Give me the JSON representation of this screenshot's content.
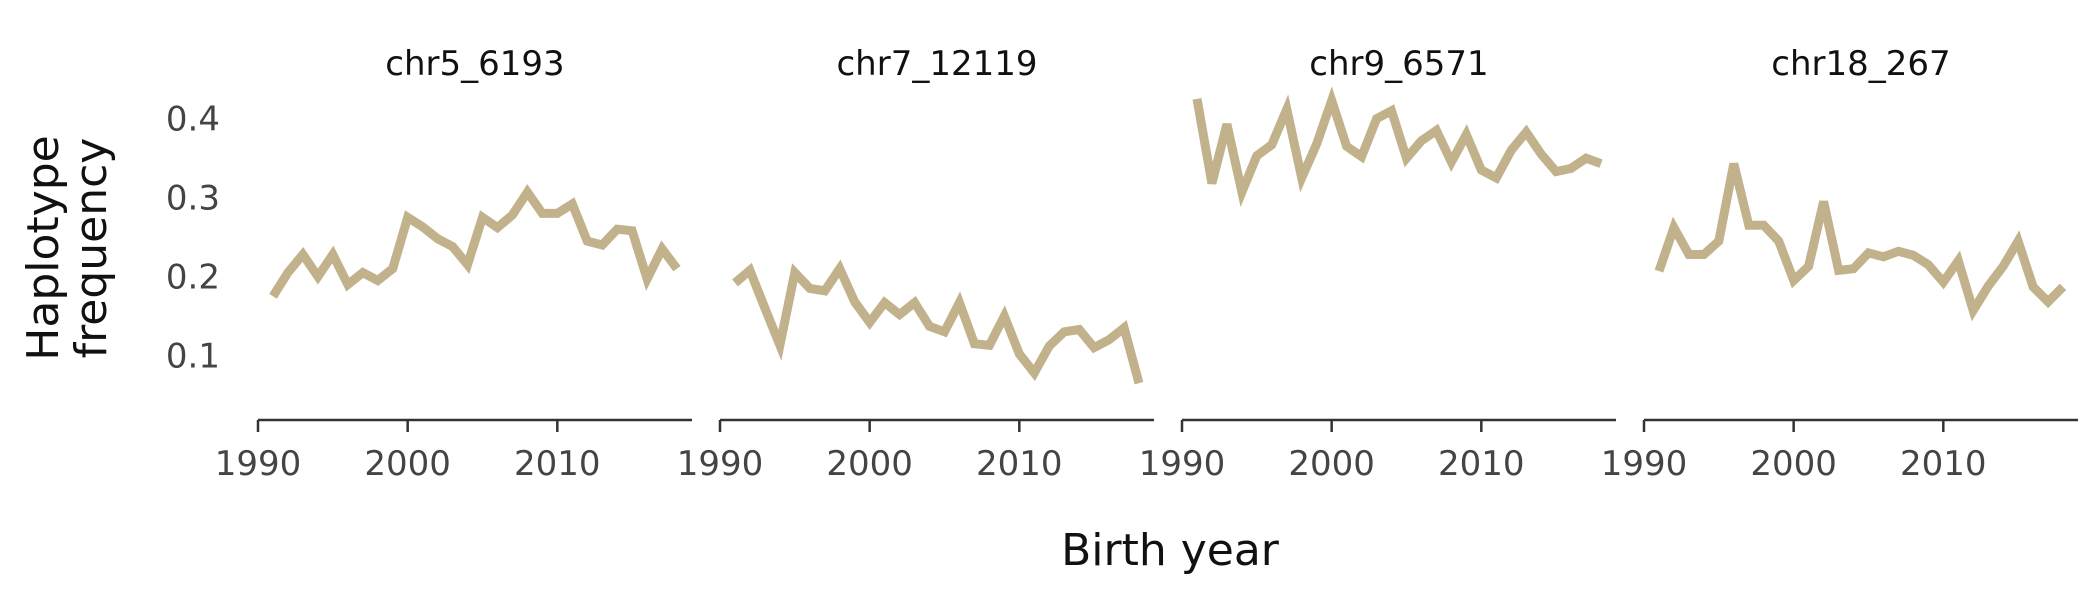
{
  "chart_data": {
    "type": "line",
    "ylabel": [
      "Haplotype",
      "frequency"
    ],
    "xlabel": "Birth year",
    "xlim": [
      1990,
      2019
    ],
    "ylim": [
      0.05,
      0.43
    ],
    "xticks": [
      1990,
      2000,
      2010
    ],
    "yticks": [
      0.1,
      0.2,
      0.3,
      0.4
    ],
    "line_color": "#c2b28c",
    "panels": [
      {
        "title": "chr5_6193",
        "x": [
          1991,
          1992,
          1993,
          1994,
          1995,
          1996,
          1997,
          1998,
          1999,
          2000,
          2001,
          2002,
          2003,
          2004,
          2005,
          2006,
          2007,
          2008,
          2009,
          2010,
          2011,
          2012,
          2013,
          2014,
          2015,
          2016,
          2017,
          2018
        ],
        "values": [
          0.175,
          0.205,
          0.228,
          0.2,
          0.228,
          0.19,
          0.205,
          0.195,
          0.21,
          0.275,
          0.263,
          0.248,
          0.238,
          0.215,
          0.275,
          0.262,
          0.278,
          0.307,
          0.28,
          0.28,
          0.292,
          0.245,
          0.24,
          0.26,
          0.258,
          0.197,
          0.235,
          0.21
        ]
      },
      {
        "title": "chr7_12119",
        "x": [
          1991,
          1992,
          1993,
          1994,
          1995,
          1996,
          1997,
          1998,
          1999,
          2000,
          2001,
          2002,
          2003,
          2004,
          2005,
          2006,
          2007,
          2008,
          2009,
          2010,
          2011,
          2012,
          2013,
          2014,
          2015,
          2016,
          2017,
          2018
        ],
        "values": [
          0.192,
          0.208,
          0.16,
          0.113,
          0.205,
          0.185,
          0.182,
          0.21,
          0.168,
          0.142,
          0.167,
          0.152,
          0.167,
          0.137,
          0.13,
          0.167,
          0.115,
          0.113,
          0.15,
          0.102,
          0.078,
          0.112,
          0.13,
          0.133,
          0.11,
          0.12,
          0.135,
          0.065
        ]
      },
      {
        "title": "chr9_6571",
        "x": [
          1991,
          1992,
          1993,
          1994,
          1995,
          1996,
          1997,
          1998,
          1999,
          2000,
          2001,
          2002,
          2003,
          2004,
          2005,
          2006,
          2007,
          2008,
          2009,
          2010,
          2011,
          2012,
          2013,
          2014,
          2015,
          2016,
          2017,
          2018
        ],
        "values": [
          0.425,
          0.318,
          0.393,
          0.307,
          0.353,
          0.367,
          0.412,
          0.325,
          0.368,
          0.423,
          0.365,
          0.352,
          0.4,
          0.41,
          0.35,
          0.372,
          0.385,
          0.345,
          0.38,
          0.335,
          0.325,
          0.36,
          0.383,
          0.355,
          0.333,
          0.337,
          0.35,
          0.343
        ]
      },
      {
        "title": "chr18_267",
        "x": [
          1991,
          1992,
          1993,
          1994,
          1995,
          1996,
          1997,
          1998,
          1999,
          2000,
          2001,
          2002,
          2003,
          2004,
          2005,
          2006,
          2007,
          2008,
          2009,
          2010,
          2011,
          2012,
          2013,
          2014,
          2015,
          2016,
          2017,
          2018
        ],
        "values": [
          0.207,
          0.262,
          0.228,
          0.228,
          0.245,
          0.343,
          0.265,
          0.265,
          0.245,
          0.195,
          0.213,
          0.295,
          0.208,
          0.21,
          0.23,
          0.225,
          0.232,
          0.227,
          0.215,
          0.193,
          0.22,
          0.157,
          0.188,
          0.213,
          0.245,
          0.187,
          0.168,
          0.187
        ]
      }
    ]
  }
}
